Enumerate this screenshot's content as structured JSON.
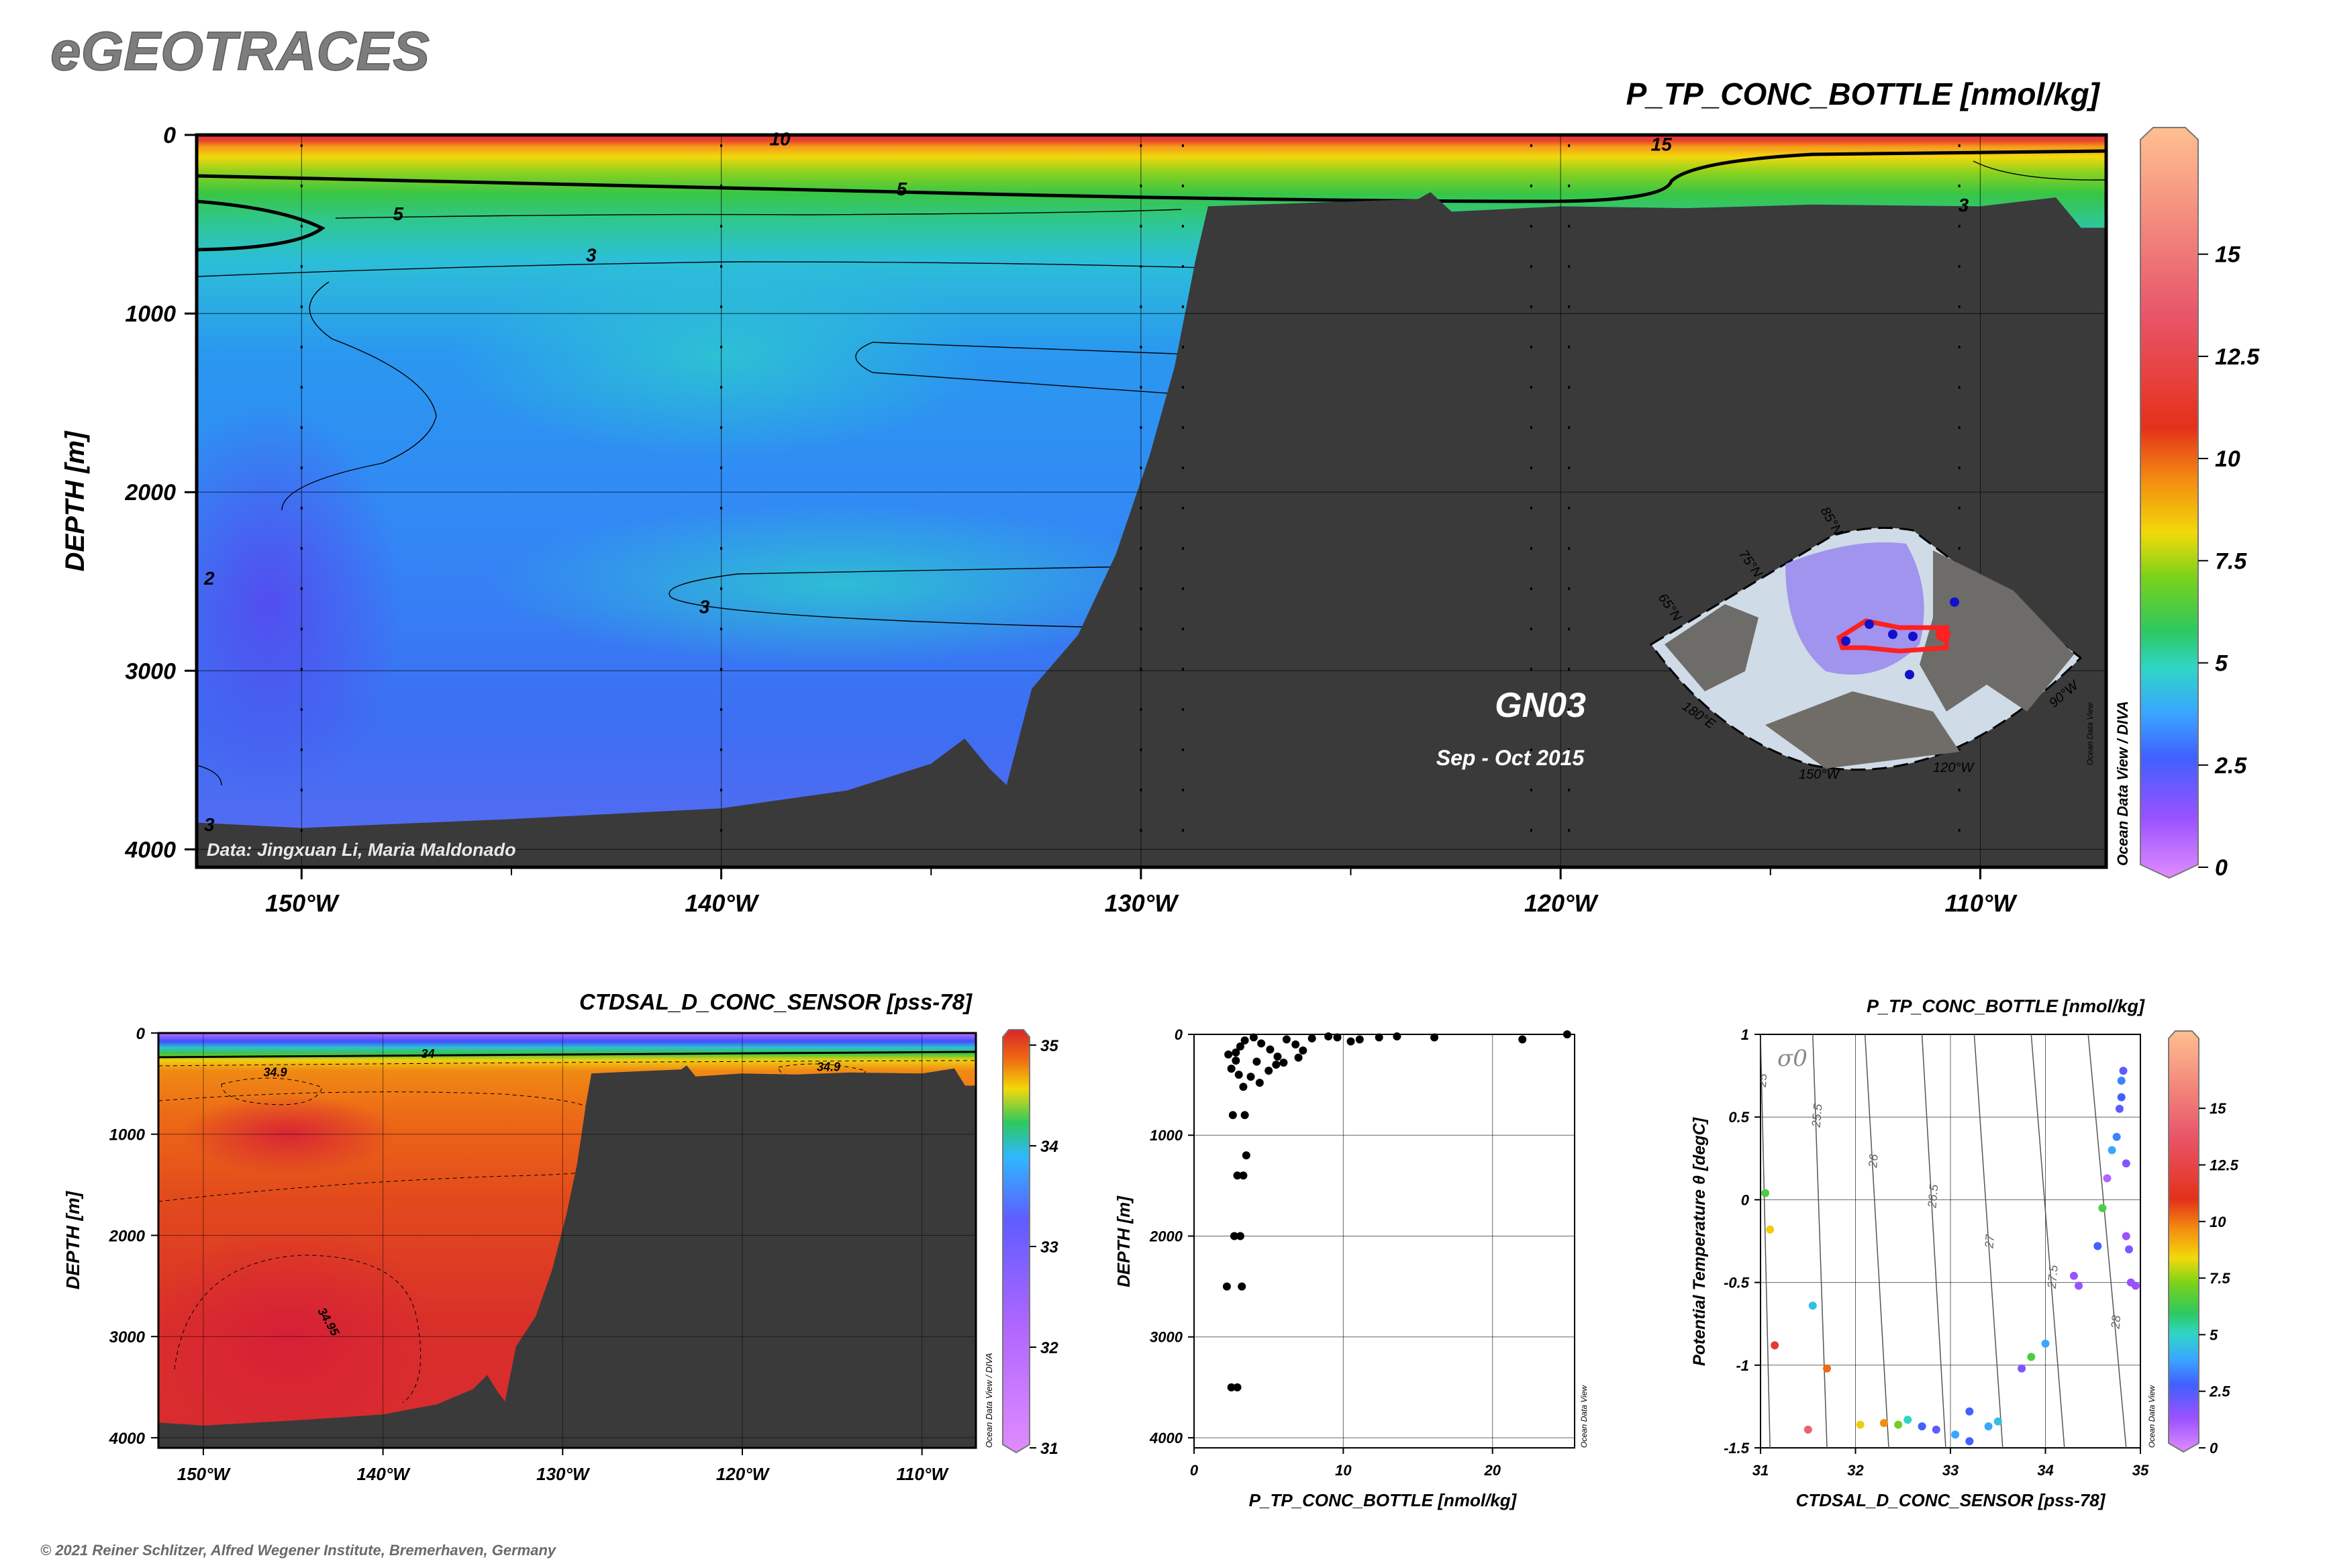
{
  "branding": {
    "logo": "eGEOTRACES"
  },
  "credits": {
    "data": "Data: Jingxuan Li, Maria Maldonado",
    "copyright": "© 2021 Reiner Schlitzer, Alfred Wegener Institute, Bremerhaven, Germany",
    "software": "Ocean Data View / DIVA",
    "software_short": "Ocean Data View"
  },
  "section": {
    "name": "GN03",
    "period": "Sep - Oct 2015"
  },
  "colors": {
    "land": "#3a3a3a",
    "contour": "#000000"
  },
  "chart_data": [
    {
      "id": "main-section",
      "type": "heatmap",
      "title": "P_TP_CONC_BOTTLE [nmol/kg]",
      "ylabel": "DEPTH [m]",
      "xlabel": "",
      "xlim": [
        -152.5,
        -107
      ],
      "ylim": [
        4100,
        0
      ],
      "x_ticks": [
        {
          "v": -150,
          "label": "150°W"
        },
        {
          "v": -140,
          "label": "140°W"
        },
        {
          "v": -130,
          "label": "130°W"
        },
        {
          "v": -120,
          "label": "120°W"
        },
        {
          "v": -110,
          "label": "110°W"
        }
      ],
      "y_ticks": [
        {
          "v": 0,
          "label": "0"
        },
        {
          "v": 1000,
          "label": "1000"
        },
        {
          "v": 2000,
          "label": "2000"
        },
        {
          "v": 3000,
          "label": "3000"
        },
        {
          "v": 4000,
          "label": "4000"
        }
      ],
      "colorbar": {
        "range": [
          0,
          18
        ],
        "ticks": [
          {
            "v": 0,
            "label": "0"
          },
          {
            "v": 2.5,
            "label": "2.5"
          },
          {
            "v": 5,
            "label": "5"
          },
          {
            "v": 7.5,
            "label": "7.5"
          },
          {
            "v": 10,
            "label": "10"
          },
          {
            "v": 12.5,
            "label": "12.5"
          },
          {
            "v": 15,
            "label": "15"
          }
        ]
      },
      "contour_labels": [
        {
          "text": "10",
          "x": -138.6,
          "y": 20
        },
        {
          "text": "15",
          "x": -117.6,
          "y": 50
        },
        {
          "text": "5",
          "x": -147.7,
          "y": 440
        },
        {
          "text": "5",
          "x": -135.7,
          "y": 300
        },
        {
          "text": "3",
          "x": -143.1,
          "y": 670
        },
        {
          "text": "3",
          "x": -110.4,
          "y": 390
        },
        {
          "text": "2",
          "x": -152.2,
          "y": 2480
        },
        {
          "text": "3",
          "x": -140.4,
          "y": 2640
        },
        {
          "text": "3",
          "x": -152.2,
          "y": 3860
        }
      ],
      "seafloor_depth": [
        {
          "lon": -152.5,
          "depth": 3850
        },
        {
          "lon": -150,
          "depth": 3880
        },
        {
          "lon": -145,
          "depth": 3830
        },
        {
          "lon": -140,
          "depth": 3770
        },
        {
          "lon": -137,
          "depth": 3670
        },
        {
          "lon": -135,
          "depth": 3520
        },
        {
          "lon": -134.2,
          "depth": 3380
        },
        {
          "lon": -133.6,
          "depth": 3550
        },
        {
          "lon": -133.2,
          "depth": 3640
        },
        {
          "lon": -132.6,
          "depth": 3100
        },
        {
          "lon": -131.5,
          "depth": 2800
        },
        {
          "lon": -130.6,
          "depth": 2350
        },
        {
          "lon": -129.8,
          "depth": 1800
        },
        {
          "lon": -129.2,
          "depth": 1300
        },
        {
          "lon": -128.7,
          "depth": 700
        },
        {
          "lon": -128.4,
          "depth": 400
        },
        {
          "lon": -126,
          "depth": 380
        },
        {
          "lon": -123.4,
          "depth": 360
        },
        {
          "lon": -123.1,
          "depth": 320
        },
        {
          "lon": -122.6,
          "depth": 430
        },
        {
          "lon": -120,
          "depth": 400
        },
        {
          "lon": -117,
          "depth": 410
        },
        {
          "lon": -114,
          "depth": 390
        },
        {
          "lon": -110,
          "depth": 400
        },
        {
          "lon": -108.2,
          "depth": 350
        },
        {
          "lon": -107.6,
          "depth": 520
        },
        {
          "lon": -107,
          "depth": 520
        }
      ],
      "bottle_stations_lon": [
        -150,
        -140,
        -130,
        -129,
        -120.7,
        -119.8,
        -110.5
      ]
    },
    {
      "id": "salinity-section",
      "type": "heatmap",
      "title": "CTDSAL_D_CONC_SENSOR [pss-78]",
      "ylabel": "DEPTH [m]",
      "xlim": [
        -152.5,
        -107
      ],
      "ylim": [
        4100,
        0
      ],
      "x_ticks": [
        {
          "v": -150,
          "label": "150°W"
        },
        {
          "v": -140,
          "label": "140°W"
        },
        {
          "v": -130,
          "label": "130°W"
        },
        {
          "v": -120,
          "label": "120°W"
        },
        {
          "v": -110,
          "label": "110°W"
        }
      ],
      "y_ticks": [
        {
          "v": 0,
          "label": "0"
        },
        {
          "v": 1000,
          "label": "1000"
        },
        {
          "v": 2000,
          "label": "2000"
        },
        {
          "v": 3000,
          "label": "3000"
        },
        {
          "v": 4000,
          "label": "4000"
        }
      ],
      "colorbar": {
        "range": [
          31,
          35
        ],
        "ticks": [
          {
            "v": 31,
            "label": "31"
          },
          {
            "v": 32,
            "label": "32"
          },
          {
            "v": 33,
            "label": "33"
          },
          {
            "v": 34,
            "label": "34"
          },
          {
            "v": 35,
            "label": "35"
          }
        ]
      },
      "contour_labels": [
        {
          "text": "34",
          "x": -137.5,
          "y": 200
        },
        {
          "text": "34.9",
          "x": -146,
          "y": 380
        },
        {
          "text": "34.9",
          "x": -115.2,
          "y": 330
        },
        {
          "text": "34.95",
          "x": -143,
          "y": 2850
        }
      ]
    },
    {
      "id": "profile-scatter",
      "type": "scatter",
      "title": "",
      "xlabel": "P_TP_CONC_BOTTLE [nmol/kg]",
      "ylabel": "DEPTH [m]",
      "xlim": [
        0,
        25.5
      ],
      "ylim": [
        4100,
        0
      ],
      "x_ticks": [
        {
          "v": 0,
          "label": "0"
        },
        {
          "v": 10,
          "label": "10"
        },
        {
          "v": 20,
          "label": "20"
        }
      ],
      "y_ticks": [
        {
          "v": 0,
          "label": "0"
        },
        {
          "v": 1000,
          "label": "1000"
        },
        {
          "v": 2000,
          "label": "2000"
        },
        {
          "v": 3000,
          "label": "3000"
        },
        {
          "v": 4000,
          "label": "4000"
        }
      ],
      "points": [
        {
          "x": 2.3,
          "y": 200
        },
        {
          "x": 2.8,
          "y": 180
        },
        {
          "x": 3.1,
          "y": 120
        },
        {
          "x": 3.4,
          "y": 60
        },
        {
          "x": 4.0,
          "y": 30
        },
        {
          "x": 4.5,
          "y": 90
        },
        {
          "x": 5.1,
          "y": 150
        },
        {
          "x": 5.6,
          "y": 220
        },
        {
          "x": 6.2,
          "y": 50
        },
        {
          "x": 6.8,
          "y": 100
        },
        {
          "x": 7.3,
          "y": 160
        },
        {
          "x": 7.9,
          "y": 40
        },
        {
          "x": 9.0,
          "y": 20
        },
        {
          "x": 9.6,
          "y": 30
        },
        {
          "x": 10.5,
          "y": 70
        },
        {
          "x": 11.1,
          "y": 50
        },
        {
          "x": 12.4,
          "y": 30
        },
        {
          "x": 13.6,
          "y": 20
        },
        {
          "x": 16.1,
          "y": 30
        },
        {
          "x": 22.0,
          "y": 50
        },
        {
          "x": 25.0,
          "y": 0
        },
        {
          "x": 2.5,
          "y": 340
        },
        {
          "x": 3.0,
          "y": 400
        },
        {
          "x": 3.8,
          "y": 420
        },
        {
          "x": 4.4,
          "y": 480
        },
        {
          "x": 5.0,
          "y": 360
        },
        {
          "x": 5.5,
          "y": 300
        },
        {
          "x": 3.3,
          "y": 520
        },
        {
          "x": 2.8,
          "y": 260
        },
        {
          "x": 4.2,
          "y": 270
        },
        {
          "x": 6.0,
          "y": 280
        },
        {
          "x": 7.0,
          "y": 230
        },
        {
          "x": 2.6,
          "y": 800
        },
        {
          "x": 3.4,
          "y": 800
        },
        {
          "x": 3.5,
          "y": 1200
        },
        {
          "x": 2.9,
          "y": 1400
        },
        {
          "x": 3.3,
          "y": 1400
        },
        {
          "x": 2.7,
          "y": 2000
        },
        {
          "x": 3.1,
          "y": 2000
        },
        {
          "x": 2.2,
          "y": 2500
        },
        {
          "x": 3.2,
          "y": 2500
        },
        {
          "x": 2.5,
          "y": 3500
        },
        {
          "x": 2.9,
          "y": 3500
        }
      ]
    },
    {
      "id": "ts-scatter",
      "type": "scatter",
      "title": "P_TP_CONC_BOTTLE [nmol/kg]",
      "xlabel": "CTDSAL_D_CONC_SENSOR [pss-78]",
      "ylabel": "Potential Temperature θ [degC]",
      "xlim": [
        31,
        35
      ],
      "ylim": [
        -1.5,
        1
      ],
      "x_ticks": [
        {
          "v": 31,
          "label": "31"
        },
        {
          "v": 32,
          "label": "32"
        },
        {
          "v": 33,
          "label": "33"
        },
        {
          "v": 34,
          "label": "34"
        },
        {
          "v": 35,
          "label": "35"
        }
      ],
      "y_ticks": [
        {
          "v": -1.5,
          "label": "-1.5"
        },
        {
          "v": -1,
          "label": "-1"
        },
        {
          "v": -0.5,
          "label": "-0.5"
        },
        {
          "v": 0,
          "label": "0"
        },
        {
          "v": 0.5,
          "label": "0.5"
        },
        {
          "v": 1,
          "label": "1"
        }
      ],
      "isopycnal_label": "σ0",
      "isopycnals": [
        {
          "label": "25",
          "x_bottom": 31.1,
          "x_top": 31.0
        },
        {
          "label": "25.5",
          "x_bottom": 31.7,
          "x_top": 31.55
        },
        {
          "label": "26",
          "x_bottom": 32.35,
          "x_top": 32.1
        },
        {
          "label": "26.5",
          "x_bottom": 32.95,
          "x_top": 32.7
        },
        {
          "label": "27",
          "x_bottom": 33.55,
          "x_top": 33.25
        },
        {
          "label": "27.5",
          "x_bottom": 34.2,
          "x_top": 33.85
        },
        {
          "label": "28",
          "x_bottom": 34.85,
          "x_top": 34.45
        }
      ],
      "colorbar": {
        "range": [
          0,
          18
        ],
        "ticks": [
          {
            "v": 0,
            "label": "0"
          },
          {
            "v": 2.5,
            "label": "2.5"
          },
          {
            "v": 5,
            "label": "5"
          },
          {
            "v": 7.5,
            "label": "7.5"
          },
          {
            "v": 10,
            "label": "10"
          },
          {
            "v": 12.5,
            "label": "12.5"
          },
          {
            "v": 15,
            "label": "15"
          }
        ]
      },
      "points": [
        {
          "x": 31.05,
          "y": 0.04,
          "c": 6.5
        },
        {
          "x": 31.1,
          "y": -0.18,
          "c": 8.5
        },
        {
          "x": 31.15,
          "y": -0.88,
          "c": 11.5
        },
        {
          "x": 31.55,
          "y": -0.64,
          "c": 4.5
        },
        {
          "x": 31.7,
          "y": -1.02,
          "c": 10
        },
        {
          "x": 31.5,
          "y": -1.39,
          "c": 14
        },
        {
          "x": 32.05,
          "y": -1.36,
          "c": 8.5
        },
        {
          "x": 32.3,
          "y": -1.35,
          "c": 9.5
        },
        {
          "x": 32.45,
          "y": -1.36,
          "c": 7
        },
        {
          "x": 32.55,
          "y": -1.33,
          "c": 5
        },
        {
          "x": 32.7,
          "y": -1.37,
          "c": 3
        },
        {
          "x": 32.85,
          "y": -1.39,
          "c": 2.5
        },
        {
          "x": 33.05,
          "y": -1.42,
          "c": 4
        },
        {
          "x": 33.2,
          "y": -1.28,
          "c": 3
        },
        {
          "x": 33.2,
          "y": -1.46,
          "c": 3
        },
        {
          "x": 33.4,
          "y": -1.37,
          "c": 4
        },
        {
          "x": 33.5,
          "y": -1.34,
          "c": 4.5
        },
        {
          "x": 33.75,
          "y": -1.02,
          "c": 2
        },
        {
          "x": 33.85,
          "y": -0.95,
          "c": 6.5
        },
        {
          "x": 34.0,
          "y": -0.87,
          "c": 4
        },
        {
          "x": 34.3,
          "y": -0.46,
          "c": 1.5
        },
        {
          "x": 34.35,
          "y": -0.52,
          "c": 1.5
        },
        {
          "x": 34.55,
          "y": -0.28,
          "c": 3
        },
        {
          "x": 34.6,
          "y": -0.05,
          "c": 6.5
        },
        {
          "x": 34.65,
          "y": 0.13,
          "c": 1
        },
        {
          "x": 34.7,
          "y": 0.3,
          "c": 4
        },
        {
          "x": 34.75,
          "y": 0.38,
          "c": 3.5
        },
        {
          "x": 34.8,
          "y": 0.62,
          "c": 3
        },
        {
          "x": 34.8,
          "y": 0.72,
          "c": 3.5
        },
        {
          "x": 34.82,
          "y": 0.78,
          "c": 2.5
        },
        {
          "x": 34.85,
          "y": -0.22,
          "c": 1.5
        },
        {
          "x": 34.88,
          "y": -0.3,
          "c": 2
        },
        {
          "x": 34.9,
          "y": -0.5,
          "c": 1.5
        },
        {
          "x": 34.95,
          "y": -0.52,
          "c": 1.5
        },
        {
          "x": 34.85,
          "y": 0.22,
          "c": 2
        },
        {
          "x": 34.78,
          "y": 0.55,
          "c": 2.5
        }
      ]
    }
  ],
  "inset_map": {
    "lat_labels": [
      "85°N",
      "75°N",
      "65°N"
    ],
    "lon_labels": [
      "180°E",
      "150°W",
      "120°W",
      "90°W"
    ]
  }
}
